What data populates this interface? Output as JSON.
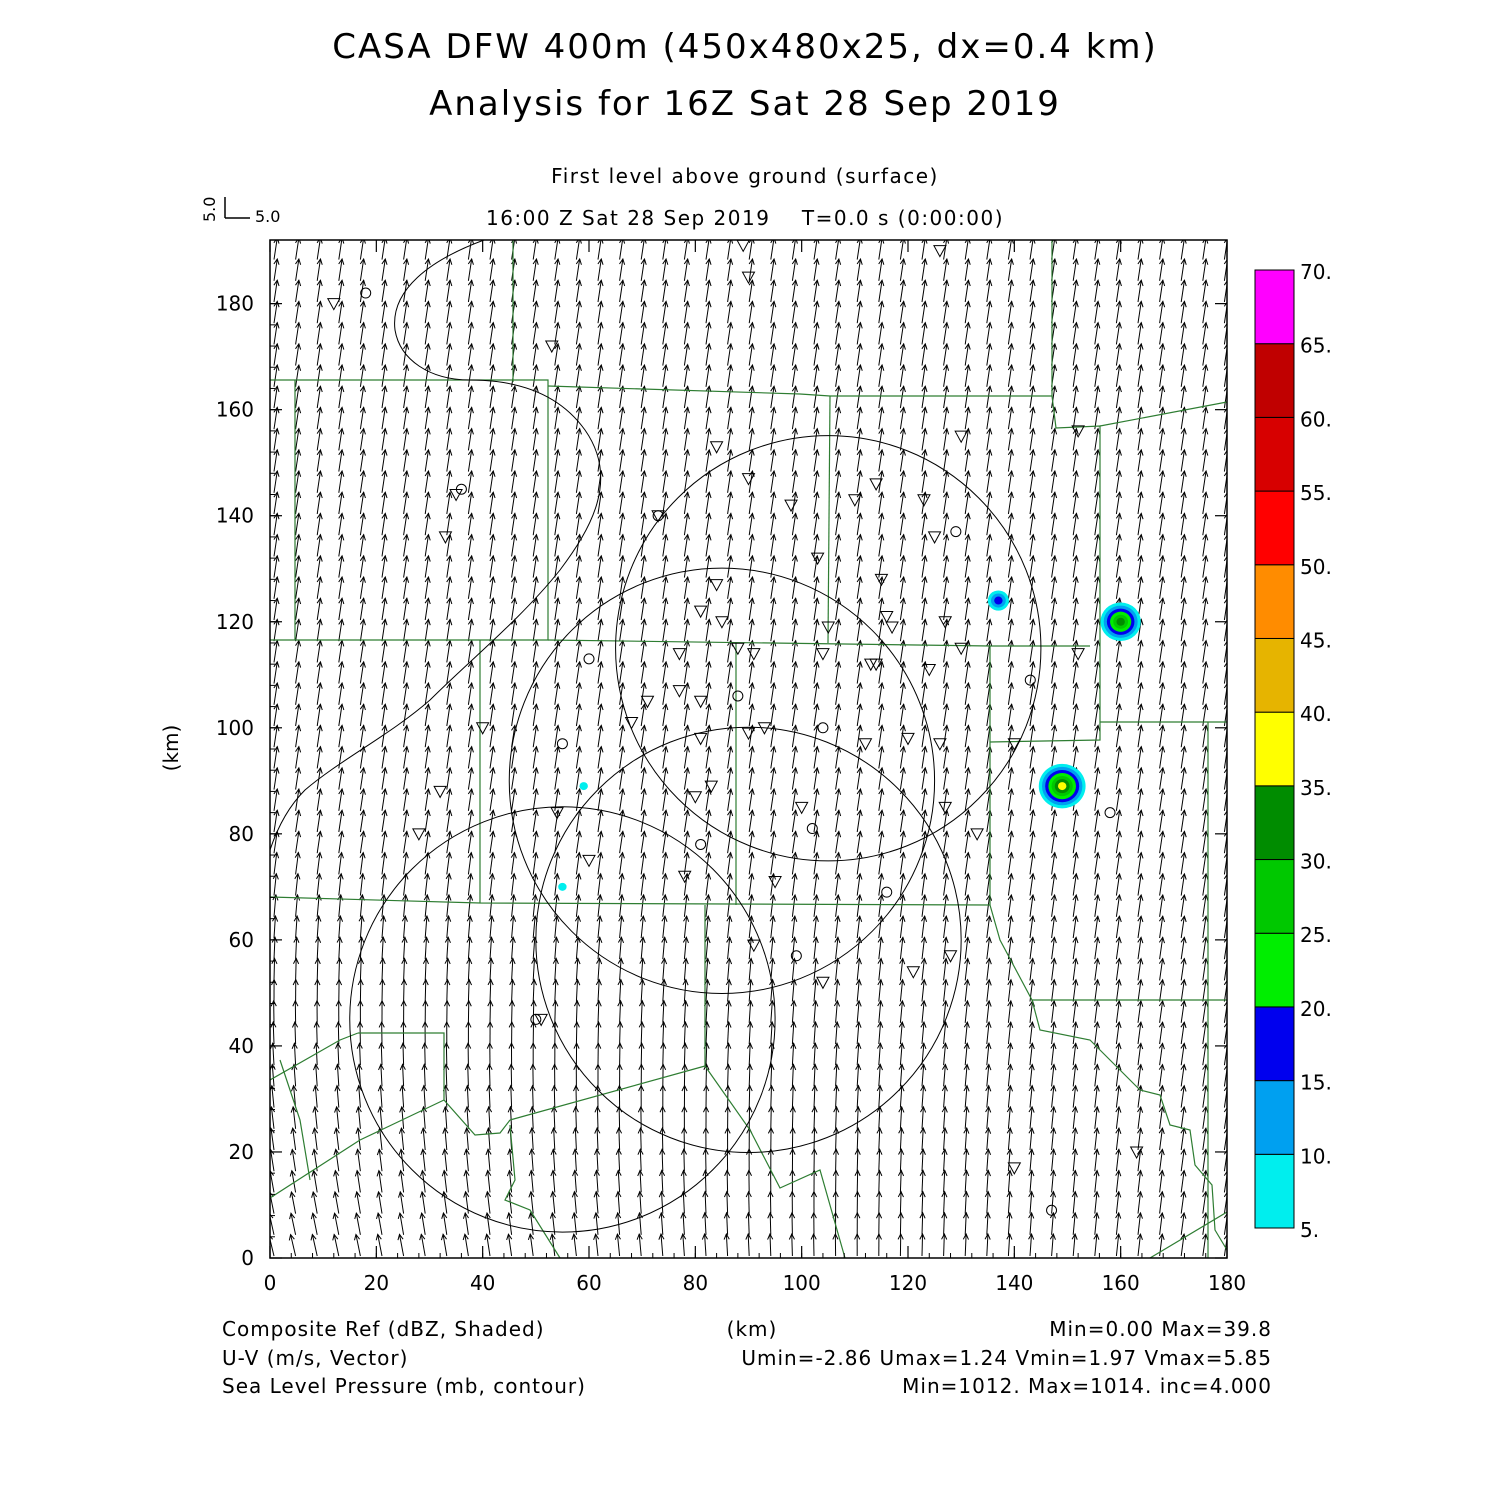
{
  "title": {
    "line1": "CASA DFW 400m (450x480x25, dx=0.4 km)",
    "line2": "Analysis for 16Z Sat 28 Sep 2019"
  },
  "subtitle": {
    "level": "First level above ground (surface)",
    "time": "16:00 Z Sat 28 Sep 2019    T=0.0 s (0:00:00)"
  },
  "vector_key": {
    "vertical_label": "5.0",
    "horizontal_label": "5.0"
  },
  "footer": {
    "left": [
      "Composite Ref (dBZ, Shaded)",
      "U-V (m/s, Vector)",
      "Sea Level Pressure (mb, contour)"
    ],
    "center": "(km)",
    "right": [
      "Min=0.00 Max=39.8",
      "Umin=-2.86 Umax=1.24 Vmin=1.97 Vmax=5.85",
      "Min=1012. Max=1014. inc=4.000"
    ]
  },
  "colorbar": {
    "labels": [
      "5.",
      "10.",
      "15.",
      "20.",
      "25.",
      "30.",
      "35.",
      "40.",
      "45.",
      "50.",
      "55.",
      "60.",
      "65.",
      "70."
    ],
    "colors": [
      "#00eeee",
      "#00a0f0",
      "#0000ee",
      "#00ee00",
      "#00c800",
      "#008c00",
      "#ffff00",
      "#e6b400",
      "#ff8c00",
      "#ff0000",
      "#d70000",
      "#c00000",
      "#ff00ff"
    ]
  },
  "chart_data": {
    "type": "heatmap",
    "xlabel": "(km)",
    "ylabel": "(km)",
    "xlim": [
      0,
      180
    ],
    "ylim": [
      0,
      192
    ],
    "xticks": [
      0,
      20,
      40,
      60,
      80,
      100,
      120,
      140,
      160,
      180
    ],
    "yticks": [
      0,
      20,
      40,
      60,
      80,
      100,
      120,
      140,
      160,
      180
    ],
    "shaded_field": "Composite Ref (dBZ)",
    "vector_field": "U-V (m/s)",
    "contour_field": "Sea Level Pressure (mb)",
    "reflectivity_cells": [
      {
        "x": 137,
        "y": 124,
        "max_dbz": 17
      },
      {
        "x": 160,
        "y": 120,
        "max_dbz": 30
      },
      {
        "x": 149,
        "y": 89,
        "max_dbz": 39.8
      },
      {
        "x": 55,
        "y": 70,
        "max_dbz": 7
      },
      {
        "x": 59,
        "y": 89,
        "max_dbz": 7
      }
    ],
    "stats": {
      "ref_min": 0.0,
      "ref_max": 39.8,
      "umin": -2.86,
      "umax": 1.24,
      "vmin": 1.97,
      "vmax": 5.85,
      "slp_min": 1012,
      "slp_max": 1014,
      "slp_inc": 4.0
    },
    "radar_range_circles_center_km": [
      [
        105,
        115
      ],
      [
        85,
        90
      ],
      [
        90,
        60
      ],
      [
        55,
        45
      ]
    ],
    "station_triangles_km": [
      [
        12,
        180
      ],
      [
        53,
        172
      ],
      [
        89,
        191
      ],
      [
        90,
        185
      ],
      [
        126,
        190
      ],
      [
        84,
        153
      ],
      [
        130,
        155
      ],
      [
        90,
        147
      ],
      [
        98,
        142
      ],
      [
        35,
        144
      ],
      [
        73,
        140
      ],
      [
        110,
        143
      ],
      [
        114,
        146
      ],
      [
        123,
        143
      ],
      [
        125,
        136
      ],
      [
        33,
        136
      ],
      [
        103,
        132
      ],
      [
        115,
        128
      ],
      [
        84,
        127
      ],
      [
        81,
        122
      ],
      [
        85,
        120
      ],
      [
        105,
        119
      ],
      [
        116,
        121
      ],
      [
        117,
        119
      ],
      [
        127,
        120
      ],
      [
        130,
        115
      ],
      [
        88,
        115
      ],
      [
        104,
        114
      ],
      [
        77,
        114
      ],
      [
        91,
        114
      ],
      [
        113,
        112
      ],
      [
        114,
        112
      ],
      [
        124,
        111
      ],
      [
        152,
        114
      ],
      [
        71,
        105
      ],
      [
        77,
        107
      ],
      [
        81,
        105
      ],
      [
        68,
        101
      ],
      [
        40,
        100
      ],
      [
        81,
        98
      ],
      [
        90,
        99
      ],
      [
        93,
        100
      ],
      [
        112,
        97
      ],
      [
        120,
        98
      ],
      [
        126,
        97
      ],
      [
        140,
        97
      ],
      [
        32,
        88
      ],
      [
        80,
        87
      ],
      [
        83,
        89
      ],
      [
        54,
        84
      ],
      [
        28,
        80
      ],
      [
        100,
        85
      ],
      [
        127,
        85
      ],
      [
        133,
        80
      ],
      [
        60,
        75
      ],
      [
        95,
        71
      ],
      [
        78,
        72
      ],
      [
        91,
        59
      ],
      [
        128,
        57
      ],
      [
        104,
        52
      ],
      [
        121,
        54
      ],
      [
        51,
        45
      ],
      [
        140,
        17
      ],
      [
        163,
        20
      ],
      [
        152,
        156
      ]
    ],
    "station_circles_km": [
      [
        18,
        182
      ],
      [
        36,
        145
      ],
      [
        73,
        140
      ],
      [
        129,
        137
      ],
      [
        60,
        113
      ],
      [
        88,
        106
      ],
      [
        55,
        97
      ],
      [
        104,
        100
      ],
      [
        143,
        109
      ],
      [
        102,
        81
      ],
      [
        81,
        78
      ],
      [
        116,
        69
      ],
      [
        99,
        57
      ],
      [
        50,
        45
      ],
      [
        158,
        84
      ],
      [
        147,
        9
      ]
    ]
  }
}
